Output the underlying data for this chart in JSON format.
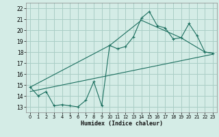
{
  "xlabel": "Humidex (Indice chaleur)",
  "background_color": "#d4ece6",
  "grid_color": "#aacec6",
  "line_color": "#1a6e5e",
  "xlim": [
    -0.5,
    23.5
  ],
  "ylim": [
    12.5,
    22.5
  ],
  "xticks": [
    0,
    1,
    2,
    3,
    4,
    5,
    6,
    7,
    8,
    9,
    10,
    11,
    12,
    13,
    14,
    15,
    16,
    17,
    18,
    19,
    20,
    21,
    22,
    23
  ],
  "yticks": [
    13,
    14,
    15,
    16,
    17,
    18,
    19,
    20,
    21,
    22
  ],
  "curve1_x": [
    0,
    1,
    2,
    3,
    4,
    5,
    6,
    7,
    8,
    9,
    10,
    11,
    12,
    13,
    14,
    15,
    16,
    17,
    18,
    19,
    20,
    21,
    22,
    23
  ],
  "curve1_y": [
    14.8,
    14.0,
    14.4,
    13.1,
    13.2,
    13.1,
    13.0,
    13.6,
    15.3,
    13.1,
    18.6,
    18.3,
    18.5,
    19.4,
    21.1,
    21.7,
    20.4,
    20.2,
    19.2,
    19.3,
    20.6,
    19.5,
    18.0,
    17.9
  ],
  "curve2_x": [
    0,
    10,
    14,
    19,
    22,
    23
  ],
  "curve2_y": [
    14.8,
    18.6,
    20.9,
    19.3,
    18.0,
    17.9
  ],
  "curve3_x": [
    0,
    23
  ],
  "curve3_y": [
    14.4,
    17.8
  ]
}
